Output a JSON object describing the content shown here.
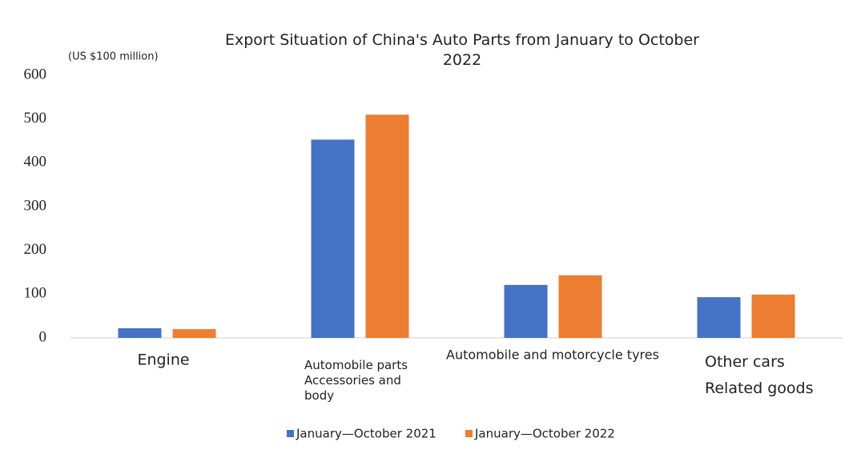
{
  "chart_data": {
    "type": "bar",
    "title": "Export Situation of China's Auto Parts from January to October 2022",
    "y_axis_label": "(US $100 million)",
    "categories": [
      "Engine",
      "Automobile parts\nAccessories and\nbody",
      "Automobile and motorcycle tyres",
      "Other cars\nRelated goods"
    ],
    "series": [
      {
        "name": "January—October 2021",
        "color": "#4472c4",
        "values": [
          22,
          453,
          121,
          93
        ]
      },
      {
        "name": "January—October 2022",
        "color": "#ed7d31",
        "values": [
          20,
          510,
          143,
          99
        ]
      }
    ],
    "ylim": [
      0,
      600
    ],
    "yticks": [
      0,
      100,
      200,
      300,
      400,
      500,
      600
    ],
    "grid": false
  }
}
